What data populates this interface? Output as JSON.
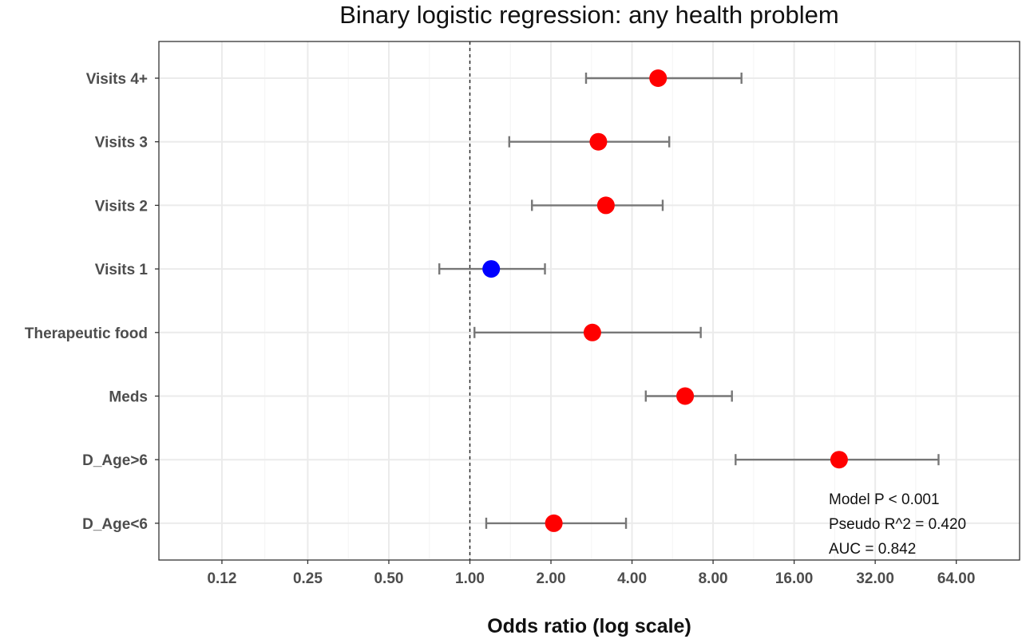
{
  "chart_data": {
    "type": "scatter",
    "subtype": "forest-plot",
    "title": "Binary logistic regression: any health problem",
    "xlabel": "Odds ratio (log scale)",
    "ylabel": "",
    "x_scale": "log2",
    "xlim": [
      0.07,
      110
    ],
    "x_ticks": [
      0.12,
      0.25,
      0.5,
      1,
      2,
      4,
      8,
      16,
      32,
      64
    ],
    "x_tick_labels": [
      "0.12",
      "0.25",
      "0.50",
      "1.00",
      "2.00",
      "4.00",
      "8.00",
      "16.00",
      "32.00",
      "64.00"
    ],
    "reference_line": 1,
    "grid": true,
    "categories": [
      "Visits 4+",
      "Visits 3",
      "Visits 2",
      "Visits 1",
      "Therapeutic food",
      "Meds",
      "D_Age>6",
      "D_Age<6"
    ],
    "points": [
      {
        "label": "Visits 4+",
        "or": 5.0,
        "lower": 2.7,
        "upper": 10.2,
        "significant": true
      },
      {
        "label": "Visits 3",
        "or": 3.0,
        "lower": 1.4,
        "upper": 5.5,
        "significant": true
      },
      {
        "label": "Visits 2",
        "or": 3.2,
        "lower": 1.7,
        "upper": 5.2,
        "significant": true
      },
      {
        "label": "Visits 1",
        "or": 1.2,
        "lower": 0.77,
        "upper": 1.9,
        "significant": false
      },
      {
        "label": "Therapeutic food",
        "or": 2.85,
        "lower": 1.04,
        "upper": 7.2,
        "significant": true
      },
      {
        "label": "Meds",
        "or": 6.3,
        "lower": 4.5,
        "upper": 9.4,
        "significant": true
      },
      {
        "label": "D_Age>6",
        "or": 23.5,
        "lower": 9.7,
        "upper": 55.0,
        "significant": true
      },
      {
        "label": "D_Age<6",
        "or": 2.05,
        "lower": 1.15,
        "upper": 3.8,
        "significant": true
      }
    ],
    "colors": {
      "significant": "#ff0000",
      "not_significant": "#0000ff",
      "error_bar": "#777777",
      "grid": "#ebebeb"
    },
    "annotations": [
      "Model P < 0.001",
      "Pseudo  R^2 = 0.420",
      "AUC = 0.842"
    ]
  }
}
